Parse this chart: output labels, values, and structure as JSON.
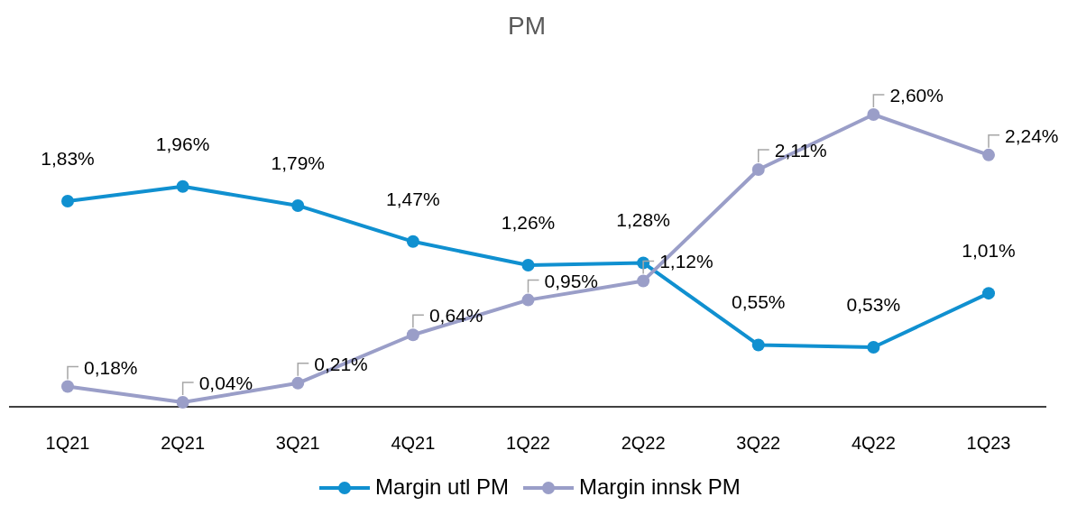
{
  "chart_data": {
    "type": "line",
    "title": "PM",
    "categories": [
      "1Q21",
      "2Q21",
      "3Q21",
      "4Q21",
      "1Q22",
      "2Q22",
      "3Q22",
      "4Q22",
      "1Q23"
    ],
    "series": [
      {
        "name": "Margin utl PM",
        "color": "#1090d0",
        "values": [
          1.83,
          1.96,
          1.79,
          1.47,
          1.26,
          1.28,
          0.55,
          0.53,
          1.01
        ],
        "value_labels": [
          "1,83%",
          "1,96%",
          "1,79%",
          "1,47%",
          "1,26%",
          "1,28%",
          "0,55%",
          "0,53%",
          "1,01%"
        ]
      },
      {
        "name": "Margin innsk PM",
        "color": "#9a9ec8",
        "values": [
          0.18,
          0.04,
          0.21,
          0.64,
          0.95,
          1.12,
          2.11,
          2.6,
          2.24
        ],
        "value_labels": [
          "0,18%",
          "0,04%",
          "0,21%",
          "0,64%",
          "0,95%",
          "1,12%",
          "2,11%",
          "2,60%",
          "2,24%"
        ]
      }
    ],
    "marker": "circle",
    "legend": "bottom"
  }
}
